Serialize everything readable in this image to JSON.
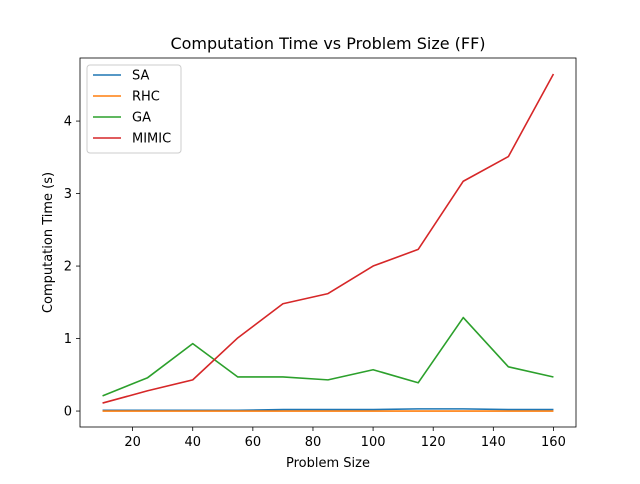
{
  "chart_data": {
    "type": "line",
    "title": "Computation Time vs Problem Size (FF)",
    "xlabel": "Problem Size",
    "ylabel": "Computation Time (s)",
    "x": [
      10,
      25,
      40,
      55,
      70,
      85,
      100,
      115,
      130,
      145,
      160
    ],
    "xlim": [
      2.5,
      167.5
    ],
    "ylim": [
      -0.22,
      4.87
    ],
    "xticks": [
      20,
      40,
      60,
      80,
      100,
      120,
      140,
      160
    ],
    "yticks": [
      0,
      1,
      2,
      3,
      4
    ],
    "grid": false,
    "legend_position": "upper left",
    "series": [
      {
        "name": "SA",
        "color": "#1f77b4",
        "values": [
          0.01,
          0.01,
          0.01,
          0.01,
          0.02,
          0.02,
          0.02,
          0.03,
          0.03,
          0.02,
          0.02
        ]
      },
      {
        "name": "RHC",
        "color": "#ff7f0e",
        "values": [
          0.0,
          0.0,
          0.0,
          0.0,
          0.0,
          0.0,
          0.0,
          0.0,
          0.0,
          0.0,
          0.0
        ]
      },
      {
        "name": "GA",
        "color": "#2ca02c",
        "values": [
          0.21,
          0.46,
          0.93,
          0.47,
          0.47,
          0.43,
          0.57,
          0.39,
          1.29,
          0.61,
          0.47
        ]
      },
      {
        "name": "MIMIC",
        "color": "#d62728",
        "values": [
          0.11,
          0.28,
          0.43,
          1.01,
          1.48,
          1.62,
          2.0,
          2.23,
          3.17,
          3.51,
          4.65
        ]
      }
    ]
  }
}
